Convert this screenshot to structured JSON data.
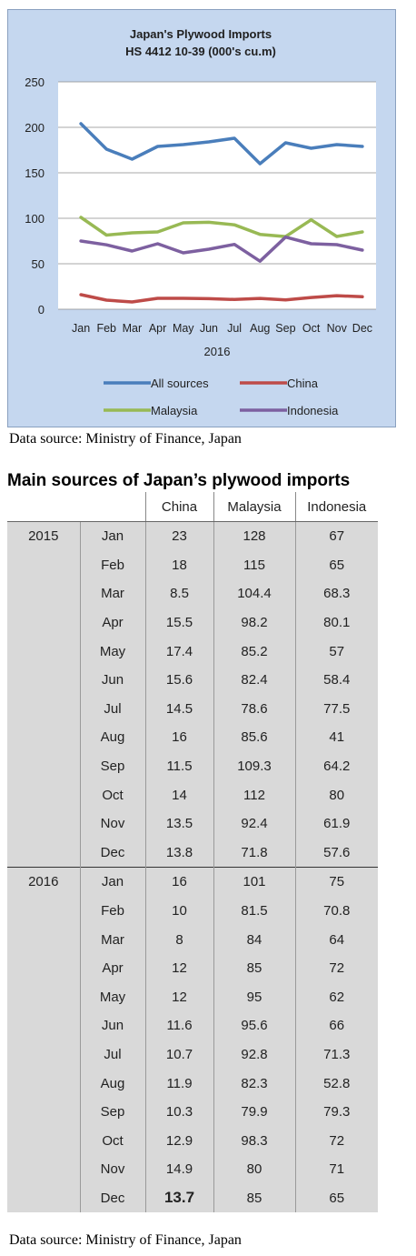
{
  "chart_data": {
    "type": "line",
    "title": "Japan's Plywood Imports",
    "subtitle": "HS 4412 10-39  (000's cu.m)",
    "xlabel": "2016",
    "ylabel": "",
    "ylim": [
      0,
      250
    ],
    "yticks": [
      "0",
      "50",
      "100",
      "150",
      "200",
      "250"
    ],
    "categories": [
      "Jan",
      "Feb",
      "Mar",
      "Apr",
      "May",
      "Jun",
      "Jul",
      "Aug",
      "Sep",
      "Oct",
      "Nov",
      "Dec"
    ],
    "grid": true,
    "legend_position": "bottom",
    "series": [
      {
        "name": "All sources",
        "color": "#4a7ebb",
        "values": [
          204,
          176,
          165,
          179,
          181,
          184,
          188,
          160,
          183,
          177,
          181,
          179
        ]
      },
      {
        "name": "China",
        "color": "#be4b48",
        "values": [
          16,
          10,
          8,
          12,
          12,
          11.6,
          10.7,
          11.9,
          10.3,
          12.9,
          14.9,
          13.7
        ]
      },
      {
        "name": "Malaysia",
        "color": "#98b954",
        "values": [
          101,
          81.5,
          84,
          85,
          95,
          95.6,
          92.8,
          82.3,
          79.9,
          98.3,
          80,
          85
        ]
      },
      {
        "name": "Indonesia",
        "color": "#7d60a0",
        "values": [
          75,
          70.8,
          64,
          72,
          62,
          66,
          71.3,
          52.8,
          79.3,
          72,
          71,
          65
        ]
      }
    ]
  },
  "chart_source": "Data source: Ministry of Finance, Japan",
  "table": {
    "title": "Main sources of Japan’s plywood imports",
    "headers": [
      "China",
      "Malaysia",
      "Indonesia"
    ],
    "years": [
      {
        "year": "2015",
        "rows": [
          {
            "month": "Jan",
            "china": "23",
            "malaysia": "128",
            "indonesia": "67"
          },
          {
            "month": "Feb",
            "china": "18",
            "malaysia": "115",
            "indonesia": "65"
          },
          {
            "month": "Mar",
            "china": "8.5",
            "malaysia": "104.4",
            "indonesia": "68.3"
          },
          {
            "month": "Apr",
            "china": "15.5",
            "malaysia": "98.2",
            "indonesia": "80.1"
          },
          {
            "month": "May",
            "china": "17.4",
            "malaysia": "85.2",
            "indonesia": "57"
          },
          {
            "month": "Jun",
            "china": "15.6",
            "malaysia": "82.4",
            "indonesia": "58.4"
          },
          {
            "month": "Jul",
            "china": "14.5",
            "malaysia": "78.6",
            "indonesia": "77.5"
          },
          {
            "month": "Aug",
            "china": "16",
            "malaysia": "85.6",
            "indonesia": "41"
          },
          {
            "month": "Sep",
            "china": "11.5",
            "malaysia": "109.3",
            "indonesia": "64.2"
          },
          {
            "month": "Oct",
            "china": "14",
            "malaysia": "112",
            "indonesia": "80"
          },
          {
            "month": "Nov",
            "china": "13.5",
            "malaysia": "92.4",
            "indonesia": "61.9"
          },
          {
            "month": "Dec",
            "china": "13.8",
            "malaysia": "71.8",
            "indonesia": "57.6"
          }
        ]
      },
      {
        "year": "2016",
        "rows": [
          {
            "month": "Jan",
            "china": "16",
            "malaysia": "101",
            "indonesia": "75"
          },
          {
            "month": "Feb",
            "china": "10",
            "malaysia": "81.5",
            "indonesia": "70.8"
          },
          {
            "month": "Mar",
            "china": "8",
            "malaysia": "84",
            "indonesia": "64"
          },
          {
            "month": "Apr",
            "china": "12",
            "malaysia": "85",
            "indonesia": "72"
          },
          {
            "month": "May",
            "china": "12",
            "malaysia": "95",
            "indonesia": "62"
          },
          {
            "month": "Jun",
            "china": "11.6",
            "malaysia": "95.6",
            "indonesia": "66"
          },
          {
            "month": "Jul",
            "china": "10.7",
            "malaysia": "92.8",
            "indonesia": "71.3"
          },
          {
            "month": "Aug",
            "china": "11.9",
            "malaysia": "82.3",
            "indonesia": "52.8"
          },
          {
            "month": "Sep",
            "china": "10.3",
            "malaysia": "79.9",
            "indonesia": "79.3"
          },
          {
            "month": "Oct",
            "china": "12.9",
            "malaysia": "98.3",
            "indonesia": "72"
          },
          {
            "month": "Nov",
            "china": "14.9",
            "malaysia": "80",
            "indonesia": "71"
          },
          {
            "month": "Dec",
            "china": "13.7",
            "malaysia": "85",
            "indonesia": "65"
          }
        ]
      }
    ]
  },
  "table_source": "Data source: Ministry of Finance, Japan"
}
